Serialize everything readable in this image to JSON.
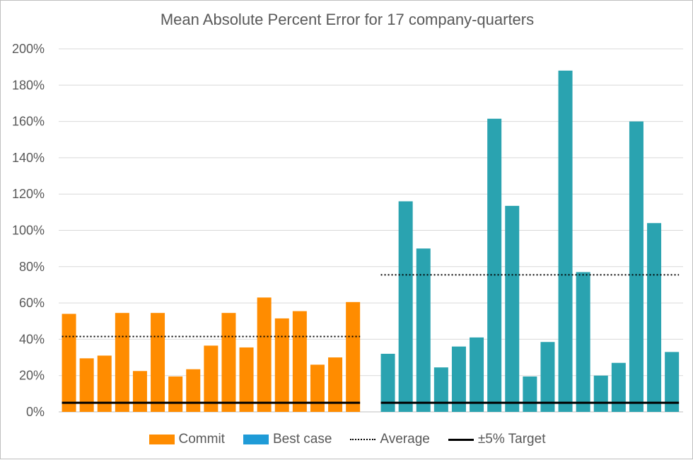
{
  "chart_data": {
    "type": "bar",
    "title": "Mean Absolute Percent Error for 17 company-quarters",
    "xlabel": "",
    "ylabel": "",
    "ylim": [
      0,
      200
    ],
    "y_ticks": [
      "0%",
      "20%",
      "40%",
      "60%",
      "80%",
      "100%",
      "120%",
      "140%",
      "160%",
      "180%",
      "200%"
    ],
    "grid": "horizontal",
    "legend_position": "bottom",
    "series": [
      {
        "name": "Commit",
        "color": "#FF8C00",
        "values": [
          54,
          29.5,
          31,
          54.5,
          22.5,
          54.5,
          19.5,
          23.5,
          36.5,
          54.5,
          35.5,
          63,
          51.5,
          55.5,
          26,
          30,
          60.5
        ],
        "average": 41.5
      },
      {
        "name": "Best case",
        "color": "#2AA3B0",
        "legend_color": "#1F9BD7",
        "values": [
          32,
          116,
          90,
          24.5,
          36,
          41,
          161.5,
          113.5,
          19.5,
          38.5,
          188,
          77,
          20,
          27,
          160,
          104,
          33
        ],
        "average": 75.5
      }
    ],
    "reference_lines": [
      {
        "name": "Average",
        "style": "dotted"
      },
      {
        "name": "±5% Target",
        "style": "solid",
        "value": 5
      }
    ]
  }
}
